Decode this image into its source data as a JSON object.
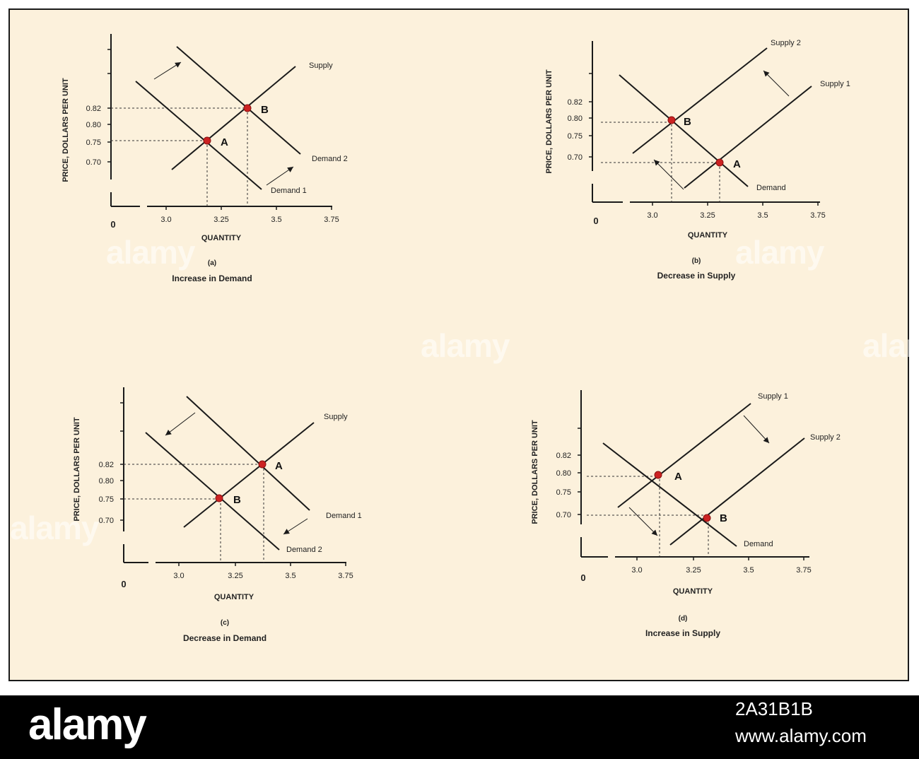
{
  "colors": {
    "background": "#fcf1dc",
    "line": "#1a1a1a",
    "point": "#cc2222",
    "guide": "#333333",
    "text": "#222222"
  },
  "watermark": {
    "text": "alamy"
  },
  "footer": {
    "brand": "alamy",
    "image_id": "2A31B1B",
    "url": "www.alamy.com"
  },
  "panels": [
    {
      "id": "a",
      "ylabel": "PRICE, DOLLARS PER UNIT",
      "xlabel": "QUANTITY",
      "origin": "0",
      "y_ticks": [
        {
          "label": "0.82",
          "value": 0.82
        },
        {
          "label": "0.80",
          "value": 0.8
        },
        {
          "label": "0.75",
          "value": 0.75
        },
        {
          "label": "0.70",
          "value": 0.7
        }
      ],
      "x_ticks": [
        {
          "label": "3.0",
          "value": 3.0
        },
        {
          "label": "3.25",
          "value": 3.25
        },
        {
          "label": "3.5",
          "value": 3.5
        },
        {
          "label": "3.75",
          "value": 3.75
        }
      ],
      "caption_letter": "(a)",
      "caption": "Increase in Demand"
    },
    {
      "id": "b",
      "ylabel": "PRICE, DOLLARS PER UNIT",
      "xlabel": "QUANTITY",
      "origin": "0",
      "y_ticks": [
        {
          "label": "0.82",
          "value": 0.82
        },
        {
          "label": "0.80",
          "value": 0.8
        },
        {
          "label": "0.75",
          "value": 0.75
        },
        {
          "label": "0.70",
          "value": 0.7
        }
      ],
      "x_ticks": [
        {
          "label": "3.0",
          "value": 3.0
        },
        {
          "label": "3.25",
          "value": 3.25
        },
        {
          "label": "3.5",
          "value": 3.5
        },
        {
          "label": "3.75",
          "value": 3.75
        }
      ],
      "caption_letter": "(b)",
      "caption": "Decrease in Supply"
    },
    {
      "id": "c",
      "ylabel": "PRICE, DOLLARS PER UNIT",
      "xlabel": "QUANTITY",
      "origin": "0",
      "y_ticks": [
        {
          "label": "0.82",
          "value": 0.82
        },
        {
          "label": "0.80",
          "value": 0.8
        },
        {
          "label": "0.75",
          "value": 0.75
        },
        {
          "label": "0.70",
          "value": 0.7
        }
      ],
      "x_ticks": [
        {
          "label": "3.0",
          "value": 3.0
        },
        {
          "label": "3.25",
          "value": 3.25
        },
        {
          "label": "3.5",
          "value": 3.5
        },
        {
          "label": "3.75",
          "value": 3.75
        }
      ],
      "caption_letter": "(c)",
      "caption": "Decrease in Demand"
    },
    {
      "id": "d",
      "ylabel": "PRICE, DOLLARS PER UNIT",
      "xlabel": "QUANTITY",
      "origin": "0",
      "y_ticks": [
        {
          "label": "0.82",
          "value": 0.82
        },
        {
          "label": "0.80",
          "value": 0.8
        },
        {
          "label": "0.75",
          "value": 0.75
        },
        {
          "label": "0.70",
          "value": 0.7
        }
      ],
      "x_ticks": [
        {
          "label": "3.0",
          "value": 3.0
        },
        {
          "label": "3.25",
          "value": 3.25
        },
        {
          "label": "3.5",
          "value": 3.5
        },
        {
          "label": "3.75",
          "value": 3.75
        }
      ],
      "caption_letter": "(d)",
      "caption": "Increase in Supply"
    }
  ],
  "curve_labels": {
    "a": [
      "Supply",
      "Demand 2",
      "Demand 1"
    ],
    "b": [
      "Supply 2",
      "Supply 1",
      "Demand"
    ],
    "c": [
      "Supply",
      "Demand 1",
      "Demand 2"
    ],
    "d": [
      "Supply 1",
      "Supply 2",
      "Demand"
    ]
  },
  "point_labels": {
    "a": [
      "A",
      "B"
    ],
    "b": [
      "B",
      "A"
    ],
    "c": [
      "B",
      "A"
    ],
    "d": [
      "A",
      "B"
    ]
  }
}
